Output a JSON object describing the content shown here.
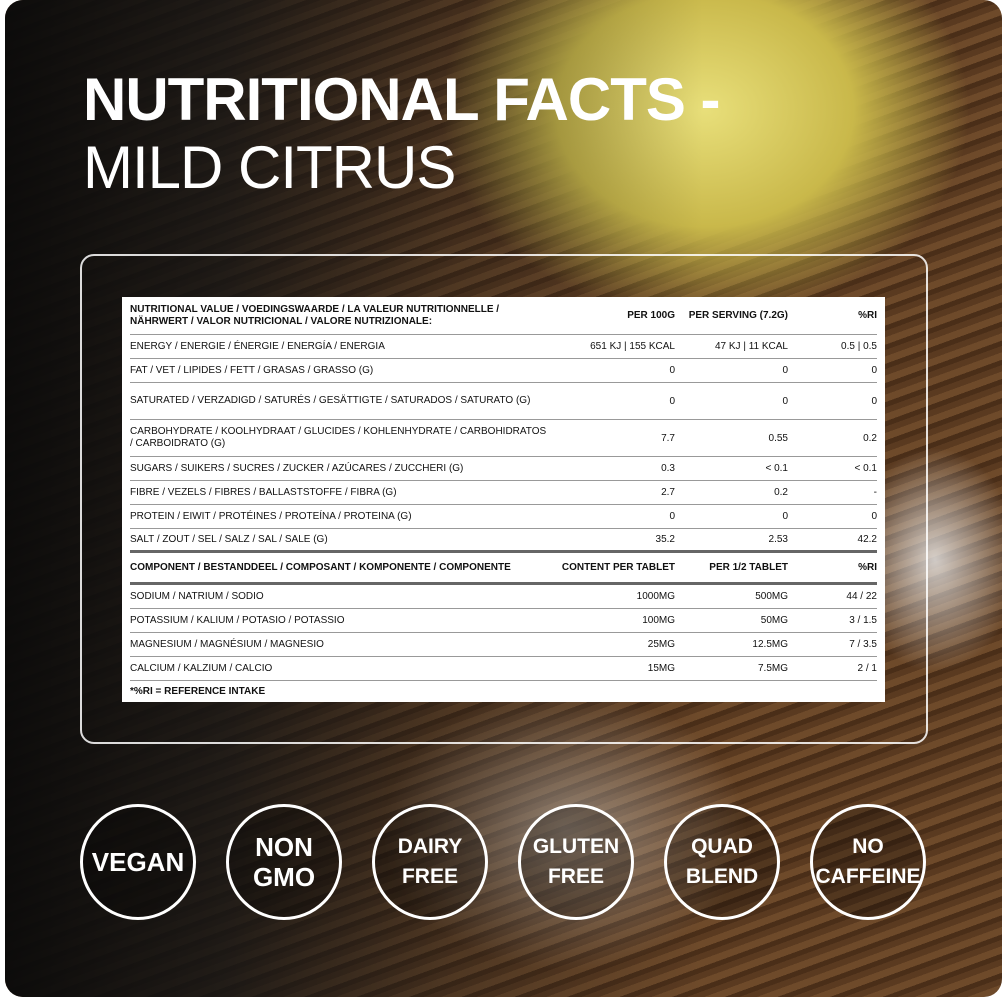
{
  "title": {
    "line1": "NUTRITIONAL FACTS -",
    "line2": "MILD CITRUS"
  },
  "nutrition": {
    "headers": [
      "NUTRITIONAL VALUE / VOEDINGSWAARDE / LA VALEUR NUTRITIONNELLE / NÄHRWERT / VALOR NUTRICIONAL / VALORE NUTRIZIONALE:",
      "PER 100G",
      "PER SERVING (7.2G)",
      "%RI"
    ],
    "rows": [
      [
        "ENERGY / ENERGIE / ÉNERGIE / ENERGÍA / ENERGIA",
        "651 KJ | 155 KCAL",
        "47 KJ | 11 KCAL",
        "0.5 | 0.5"
      ],
      [
        "FAT / VET / LIPIDES / FETT / GRASAS / GRASSO (G)",
        "0",
        "0",
        "0"
      ],
      [
        "SATURATED / VERZADIGD / SATURÉS / GESÄTTIGTE / SATURADOS / SATURATO (G)",
        "0",
        "0",
        "0"
      ],
      [
        "CARBOHYDRATE / KOOLHYDRAAT / GLUCIDES / KOHLENHYDRATE / CARBOHIDRATOS / CARBOIDRATO (G)",
        "7.7",
        "0.55",
        "0.2"
      ],
      [
        "SUGARS / SUIKERS / SUCRES / ZUCKER / AZÚCARES / ZUCCHERI (G)",
        "0.3",
        "< 0.1",
        "< 0.1"
      ],
      [
        "FIBRE / VEZELS / FIBRES / BALLASTSTOFFE / FIBRA (G)",
        "2.7",
        "0.2",
        "-"
      ],
      [
        "PROTEIN / EIWIT / PROTÉINES / PROTEÍNA / PROTEINA (G)",
        "0",
        "0",
        "0"
      ],
      [
        "SALT / ZOUT / SEL / SALZ / SAL / SALE (G)",
        "35.2",
        "2.53",
        "42.2"
      ]
    ]
  },
  "components": {
    "headers": [
      "COMPONENT / BESTANDDEEL / COMPOSANT / KOMPONENTE / COMPONENTE",
      "CONTENT PER TABLET",
      "PER 1/2 TABLET",
      "%RI"
    ],
    "rows": [
      [
        "SODIUM / NATRIUM / SODIO",
        "1000MG",
        "500MG",
        "44 / 22"
      ],
      [
        "POTASSIUM / KALIUM / POTASIO / POTASSIO",
        "100MG",
        "50MG",
        "3 / 1.5"
      ],
      [
        "MAGNESIUM / MAGNÉSIUM / MAGNESIO",
        "25MG",
        "12.5MG",
        "7 / 3.5"
      ],
      [
        "CALCIUM / KALZIUM / CALCIO",
        "15MG",
        "7.5MG",
        "2 / 1"
      ]
    ]
  },
  "footnote": "*%RI = REFERENCE INTAKE",
  "badges": [
    [
      "VEGAN"
    ],
    [
      "NON",
      "GMO"
    ],
    [
      "DAIRY",
      "FREE"
    ],
    [
      "GLUTEN",
      "FREE"
    ],
    [
      "QUAD",
      "BLEND"
    ],
    [
      "NO",
      "CAFFEINE"
    ]
  ]
}
